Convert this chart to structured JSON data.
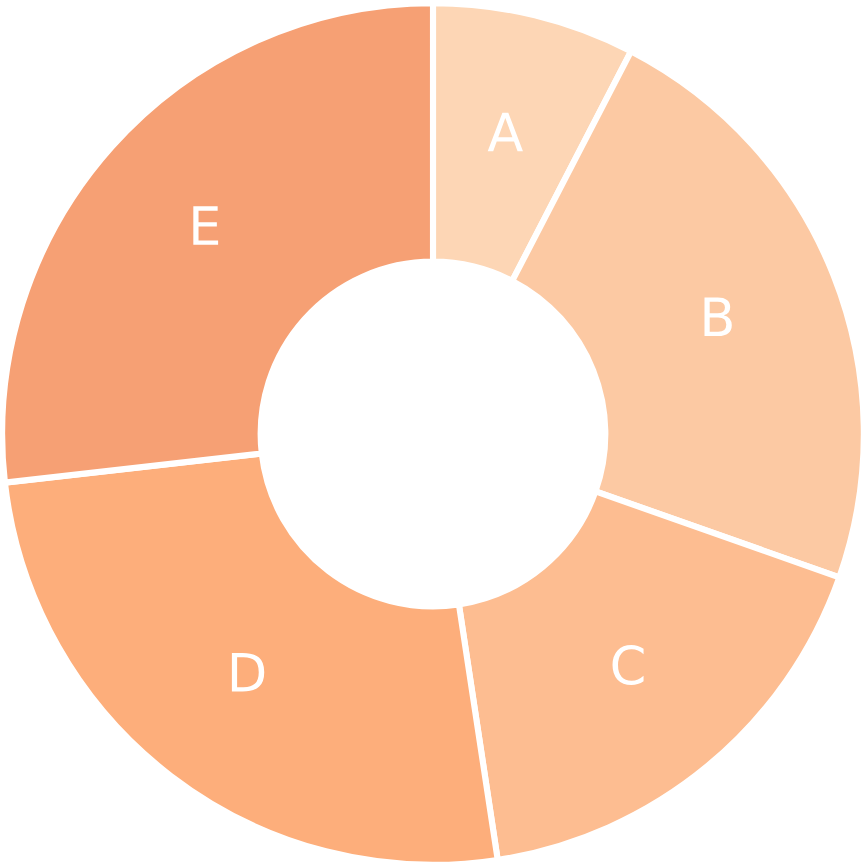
{
  "chart_data": {
    "type": "donut",
    "categories": [
      "A",
      "B",
      "C",
      "D",
      "E"
    ],
    "values": [
      7.6,
      22.8,
      17.2,
      25.6,
      26.8
    ],
    "colors": [
      "#fdd6b5",
      "#fcc9a3",
      "#fdbd91",
      "#fdae7b",
      "#f6a074"
    ]
  }
}
